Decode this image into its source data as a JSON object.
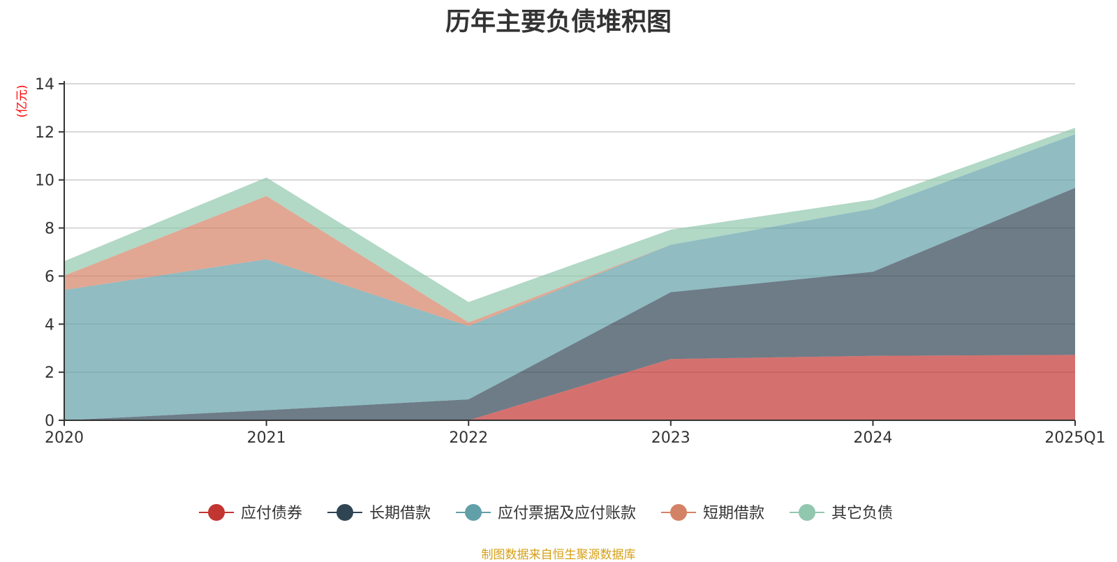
{
  "chart_data": {
    "type": "area",
    "stacked": true,
    "title": "历年主要负债堆积图",
    "unit_label": "(亿元)",
    "categories": [
      "2020",
      "2021",
      "2022",
      "2023",
      "2024",
      "2025Q1"
    ],
    "ylim": [
      0,
      14
    ],
    "yticks": [
      0,
      2,
      4,
      6,
      8,
      10,
      12,
      14
    ],
    "grid": true,
    "legend_position": "bottom",
    "series": [
      {
        "name": "应付债券",
        "color": "#c23531",
        "values": [
          0,
          0,
          0,
          2.55,
          2.68,
          2.72
        ]
      },
      {
        "name": "长期借款",
        "color": "#2f4554",
        "values": [
          0,
          0.42,
          0.87,
          2.78,
          3.5,
          6.95
        ]
      },
      {
        "name": "应付票据及应付账款",
        "color": "#61a0a8",
        "values": [
          5.42,
          6.28,
          3.05,
          1.97,
          2.62,
          2.23
        ]
      },
      {
        "name": "短期借款",
        "color": "#d48265",
        "values": [
          0.6,
          2.63,
          0.15,
          0,
          0,
          0
        ]
      },
      {
        "name": "其它负债",
        "color": "#91c7ae",
        "values": [
          0.6,
          0.77,
          0.85,
          0.63,
          0.38,
          0.27
        ]
      }
    ]
  },
  "source_note": "制图数据来自恒生聚源数据库"
}
